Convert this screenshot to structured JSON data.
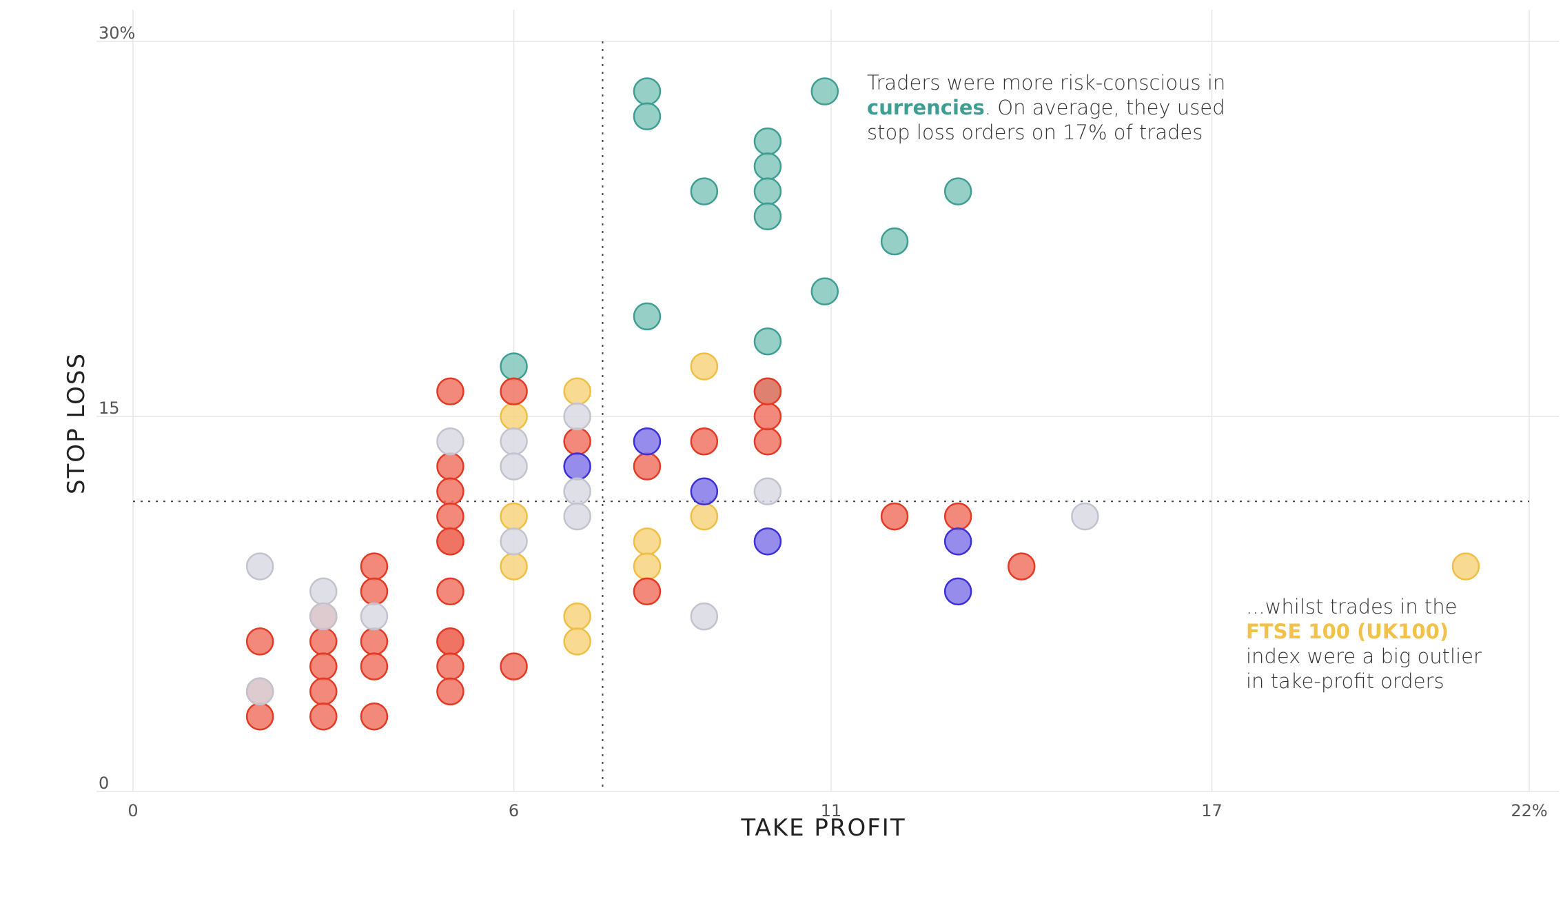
{
  "chart_data": {
    "type": "scatter",
    "xlabel": "TAKE PROFIT",
    "ylabel": "STOP LOSS",
    "xlim": [
      0,
      22
    ],
    "ylim": [
      0,
      30
    ],
    "x_ticks": [
      {
        "value": 0,
        "label": "0"
      },
      {
        "value": 6,
        "label": "6"
      },
      {
        "value": 11,
        "label": "11"
      },
      {
        "value": 17,
        "label": "17"
      },
      {
        "value": 22,
        "label": "22%"
      }
    ],
    "y_ticks": [
      {
        "value": 0,
        "label": "0"
      },
      {
        "value": 15,
        "label": "15"
      },
      {
        "value": 30,
        "label": "30%"
      }
    ],
    "gridlines": true,
    "reference_lines": {
      "x": 7.4,
      "y": 11.6
    },
    "colors": {
      "currencies": "#7fc4b8",
      "currencies_stroke": "#3f9e93",
      "ftse": "#f7d27a",
      "ftse_stroke": "#efbf45",
      "red": "#ef6f5e",
      "red_stroke": "#e23a24",
      "purple": "#7f73e6",
      "purple_stroke": "#3b2fd6",
      "grey": "#d8d9e2",
      "grey_stroke": "#c2c3cf"
    },
    "series": [
      {
        "key": "teal",
        "points": [
          [
            8.1,
            28
          ],
          [
            8.1,
            27
          ],
          [
            10.9,
            28
          ],
          [
            10,
            26
          ],
          [
            10,
            25
          ],
          [
            9,
            24
          ],
          [
            10,
            24
          ],
          [
            13,
            24
          ],
          [
            10,
            23
          ],
          [
            12,
            22
          ],
          [
            10.9,
            20
          ],
          [
            10,
            18
          ],
          [
            6,
            17
          ],
          [
            10,
            16
          ],
          [
            8.1,
            19
          ]
        ]
      },
      {
        "key": "gold",
        "points": [
          [
            7,
            16
          ],
          [
            9,
            17
          ],
          [
            6,
            15
          ],
          [
            6,
            11
          ],
          [
            9,
            11
          ],
          [
            8.1,
            10
          ],
          [
            6,
            9
          ],
          [
            8.1,
            9
          ],
          [
            7,
            7
          ],
          [
            7,
            6
          ],
          [
            21,
            9
          ]
        ]
      },
      {
        "key": "red",
        "points": [
          [
            5,
            16
          ],
          [
            6,
            16
          ],
          [
            7,
            14
          ],
          [
            9,
            14
          ],
          [
            10,
            14
          ],
          [
            10,
            15
          ],
          [
            10,
            16
          ],
          [
            5,
            13
          ],
          [
            8.1,
            13
          ],
          [
            5,
            12
          ],
          [
            5,
            11
          ],
          [
            12,
            11
          ],
          [
            13,
            11
          ],
          [
            5,
            10
          ],
          [
            5,
            10
          ],
          [
            3.8,
            9
          ],
          [
            14,
            9
          ],
          [
            3.8,
            8
          ],
          [
            5,
            8
          ],
          [
            8.1,
            8
          ],
          [
            2,
            6
          ],
          [
            3,
            6
          ],
          [
            3.8,
            6
          ],
          [
            5,
            6
          ],
          [
            5,
            6
          ],
          [
            3,
            5
          ],
          [
            3.8,
            5
          ],
          [
            5,
            5
          ],
          [
            6,
            5
          ],
          [
            2,
            4
          ],
          [
            3,
            4
          ],
          [
            5,
            4
          ],
          [
            2,
            3
          ],
          [
            3,
            3
          ],
          [
            3.8,
            3
          ],
          [
            3,
            7
          ]
        ]
      },
      {
        "key": "purple",
        "points": [
          [
            8.1,
            14
          ],
          [
            7,
            13
          ],
          [
            9,
            12
          ],
          [
            10,
            10
          ],
          [
            13,
            10
          ],
          [
            13,
            8
          ]
        ]
      },
      {
        "key": "grey",
        "points": [
          [
            5,
            14
          ],
          [
            6,
            14
          ],
          [
            7,
            15
          ],
          [
            6,
            13
          ],
          [
            7,
            12
          ],
          [
            10,
            12
          ],
          [
            7,
            11
          ],
          [
            6,
            10
          ],
          [
            15,
            11
          ],
          [
            2,
            9
          ],
          [
            3,
            8
          ],
          [
            3,
            7
          ],
          [
            3.8,
            7
          ],
          [
            9,
            7
          ],
          [
            2,
            4
          ]
        ]
      }
    ],
    "annotations": {
      "top": {
        "line1": "Traders were more risk-conscious in",
        "highlight": "currencies",
        "line2_rest": ". On average, they used",
        "line3": "stop loss orders on 17% of trades"
      },
      "bottom": {
        "line1": "...whilst trades in the",
        "highlight": "FTSE 100 (UK100)",
        "line3": "index were a big outlier",
        "line4": "in take-profit orders"
      }
    }
  }
}
